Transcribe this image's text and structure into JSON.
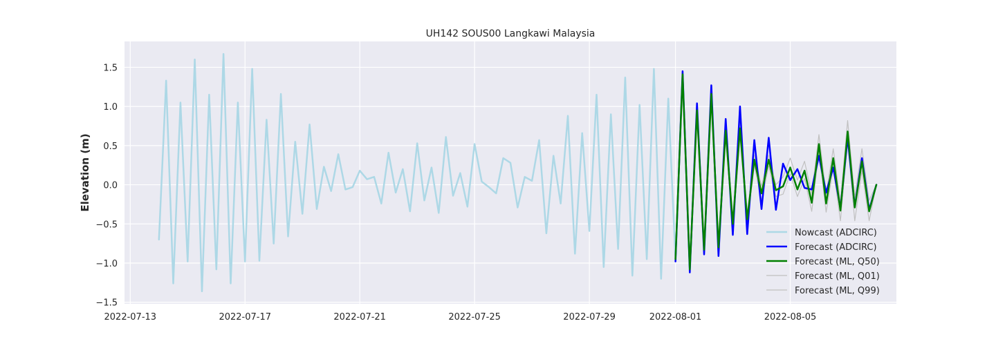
{
  "chart_data": {
    "type": "line",
    "title": "UH142 SOUS00 Langkawi Malaysia",
    "xlabel": "",
    "ylabel": "Elevation (m)",
    "x_ticks": [
      "2022-07-13",
      "2022-07-17",
      "2022-07-21",
      "2022-07-25",
      "2022-07-29",
      "2022-08-01",
      "2022-08-05"
    ],
    "x_tick_dates": [
      0,
      4,
      8,
      12,
      16,
      19,
      23
    ],
    "xlim": [
      -0.2,
      26.7
    ],
    "y_ticks": [
      -1.5,
      -1.0,
      -0.5,
      0.0,
      0.5,
      1.0,
      1.5
    ],
    "y_tick_labels": [
      "−1.5",
      "−1.0",
      "−0.5",
      "0.0",
      "0.5",
      "1.0",
      "1.5"
    ],
    "ylim": [
      -1.52,
      1.83
    ],
    "grid": true,
    "background": "#eaeaf2",
    "legend_position": "lower-right",
    "series": [
      {
        "name": "Nowcast (ADCIRC)",
        "color": "#add8e6",
        "width": 2.5,
        "x": [
          1.0,
          1.25,
          1.5,
          1.75,
          2.0,
          2.25,
          2.5,
          2.75,
          3.0,
          3.25,
          3.5,
          3.75,
          4.0,
          4.25,
          4.5,
          4.75,
          5.0,
          5.25,
          5.5,
          5.75,
          6.0,
          6.25,
          6.5,
          6.75,
          7.0,
          7.25,
          7.5,
          7.75,
          8.0,
          8.25,
          8.5,
          8.75,
          9.0,
          9.25,
          9.5,
          9.75,
          10.0,
          10.25,
          10.5,
          10.75,
          11.0,
          11.25,
          11.5,
          11.75,
          12.0,
          12.25,
          12.5,
          12.75,
          13.0,
          13.25,
          13.5,
          13.75,
          14.0,
          14.25,
          14.5,
          14.75,
          15.0,
          15.25,
          15.5,
          15.75,
          16.0,
          16.25,
          16.5,
          16.75,
          17.0,
          17.25,
          17.5,
          17.75,
          18.0,
          18.25,
          18.5,
          18.75,
          19.0
        ],
        "y": [
          -0.7,
          1.33,
          -1.26,
          1.05,
          -0.98,
          1.6,
          -1.36,
          1.15,
          -1.08,
          1.67,
          -1.26,
          1.05,
          -0.98,
          1.48,
          -0.97,
          0.83,
          -0.75,
          1.16,
          -0.66,
          0.55,
          -0.37,
          0.77,
          -0.31,
          0.23,
          -0.08,
          0.39,
          -0.06,
          -0.03,
          0.18,
          0.07,
          0.1,
          -0.24,
          0.41,
          -0.1,
          0.2,
          -0.34,
          0.53,
          -0.2,
          0.22,
          -0.36,
          0.61,
          -0.14,
          0.15,
          -0.28,
          0.52,
          0.04,
          -0.03,
          -0.11,
          0.34,
          0.28,
          -0.29,
          0.1,
          0.05,
          0.57,
          -0.62,
          0.37,
          -0.24,
          0.88,
          -0.88,
          0.66,
          -0.59,
          1.15,
          -1.05,
          0.9,
          -0.82,
          1.37,
          -1.16,
          1.02,
          -0.95,
          1.48,
          -1.2,
          1.1,
          -0.95
        ]
      },
      {
        "name": "Forecast (ADCIRC)",
        "color": "#0000ff",
        "width": 2.5,
        "x": [
          19.0,
          19.25,
          19.5,
          19.75,
          20.0,
          20.25,
          20.5,
          20.75,
          21.0,
          21.25,
          21.5,
          21.75,
          22.0,
          22.25,
          22.5,
          22.75,
          23.0,
          23.25,
          23.5,
          23.75,
          24.0,
          24.25,
          24.5,
          24.75,
          25.0,
          25.25,
          25.5,
          25.75,
          26.0
        ],
        "y": [
          -0.98,
          1.45,
          -1.12,
          1.04,
          -0.89,
          1.27,
          -0.91,
          0.84,
          -0.64,
          1.0,
          -0.63,
          0.57,
          -0.31,
          0.6,
          -0.32,
          0.27,
          0.06,
          0.2,
          -0.04,
          -0.06,
          0.37,
          -0.1,
          0.22,
          -0.3,
          0.6,
          -0.28,
          0.34,
          -0.32,
          0.0
        ]
      },
      {
        "name": "Forecast (ML, Q50)",
        "color": "#008000",
        "width": 2.5,
        "x": [
          19.0,
          19.25,
          19.5,
          19.75,
          20.0,
          20.25,
          20.5,
          20.75,
          21.0,
          21.25,
          21.5,
          21.75,
          22.0,
          22.25,
          22.5,
          22.75,
          23.0,
          23.25,
          23.5,
          23.75,
          24.0,
          24.25,
          24.5,
          24.75,
          25.0,
          25.25,
          25.5,
          25.75,
          26.0
        ],
        "y": [
          -0.95,
          1.41,
          -1.08,
          0.95,
          -0.83,
          1.16,
          -0.8,
          0.69,
          -0.5,
          0.72,
          -0.44,
          0.32,
          -0.11,
          0.32,
          -0.07,
          -0.02,
          0.22,
          -0.06,
          0.18,
          -0.23,
          0.52,
          -0.24,
          0.34,
          -0.33,
          0.68,
          -0.29,
          0.3,
          -0.34,
          0.0
        ]
      },
      {
        "name": "Forecast (ML, Q01)",
        "color": "#c0c0c0",
        "width": 1.2,
        "x": [
          19.0,
          19.25,
          19.5,
          19.75,
          20.0,
          20.25,
          20.5,
          20.75,
          21.0,
          21.25,
          21.5,
          21.75,
          22.0,
          22.25,
          22.5,
          22.75,
          23.0,
          23.25,
          23.5,
          23.75,
          24.0,
          24.25,
          24.5,
          24.75,
          25.0,
          25.25,
          25.5,
          25.75,
          26.0
        ],
        "y": [
          -0.97,
          1.38,
          -1.1,
          0.9,
          -0.86,
          1.1,
          -0.85,
          0.62,
          -0.55,
          0.62,
          -0.5,
          0.25,
          -0.2,
          0.24,
          -0.15,
          -0.12,
          0.14,
          -0.15,
          0.08,
          -0.34,
          0.42,
          -0.35,
          0.22,
          -0.46,
          0.56,
          -0.46,
          0.18,
          -0.46,
          0.0
        ]
      },
      {
        "name": "Forecast (ML, Q99)",
        "color": "#c0c0c0",
        "width": 1.2,
        "x": [
          19.0,
          19.25,
          19.5,
          19.75,
          20.0,
          20.25,
          20.5,
          20.75,
          21.0,
          21.25,
          21.5,
          21.75,
          22.0,
          22.25,
          22.5,
          22.75,
          23.0,
          23.25,
          23.5,
          23.75,
          24.0,
          24.25,
          24.5,
          24.75,
          25.0,
          25.25,
          25.5,
          25.75,
          26.0
        ],
        "y": [
          -0.93,
          1.43,
          -1.05,
          1.0,
          -0.8,
          1.2,
          -0.76,
          0.76,
          -0.46,
          0.8,
          -0.38,
          0.38,
          -0.02,
          0.38,
          0.0,
          0.1,
          0.34,
          0.06,
          0.3,
          -0.12,
          0.64,
          -0.12,
          0.46,
          -0.22,
          0.82,
          -0.16,
          0.46,
          -0.2,
          0.0
        ]
      }
    ]
  }
}
